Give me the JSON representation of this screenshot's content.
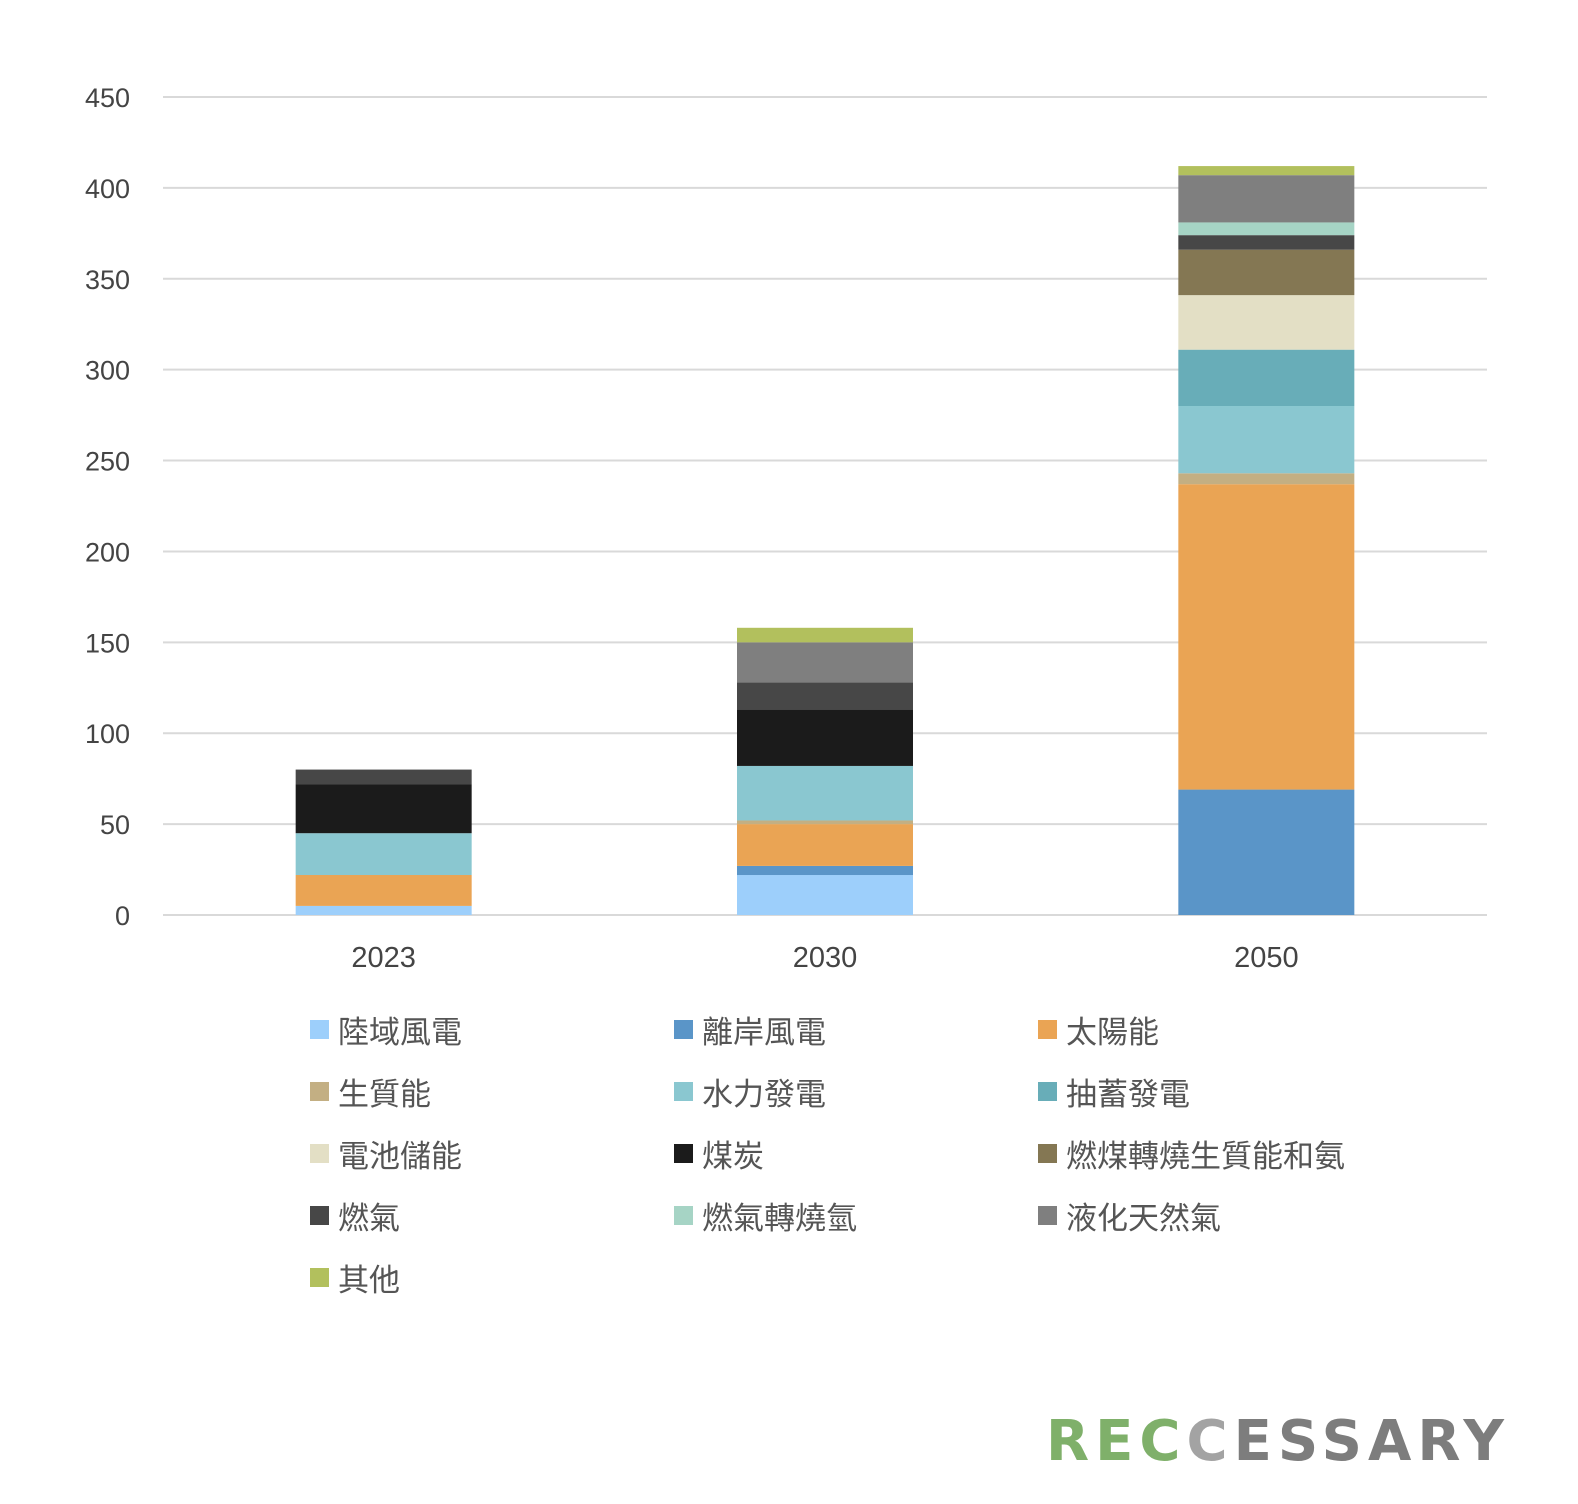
{
  "chart_data": {
    "type": "bar",
    "stacked": true,
    "categories": [
      "2023",
      "2030",
      "2050"
    ],
    "ylim": [
      0,
      450
    ],
    "yticks": [
      0,
      50,
      100,
      150,
      200,
      250,
      300,
      350,
      400,
      450
    ],
    "grid": true,
    "legend_position": "bottom",
    "title": "",
    "xlabel": "",
    "ylabel": "",
    "series": [
      {
        "name": "陸域風電",
        "color": "#9DCFFB",
        "values": [
          5,
          22,
          0
        ]
      },
      {
        "name": "離岸風電",
        "color": "#5A95C8",
        "values": [
          0,
          5,
          69
        ]
      },
      {
        "name": "太陽能",
        "color": "#EAA454",
        "values": [
          17,
          23,
          168
        ]
      },
      {
        "name": "生質能",
        "color": "#C3AF83",
        "values": [
          0,
          2,
          6
        ]
      },
      {
        "name": "水力發電",
        "color": "#8AC7D0",
        "values": [
          23,
          30,
          37
        ]
      },
      {
        "name": "抽蓄發電",
        "color": "#68ADB8",
        "values": [
          0,
          0,
          31
        ]
      },
      {
        "name": "電池儲能",
        "color": "#E3DFC5",
        "values": [
          0,
          0,
          30
        ]
      },
      {
        "name": "煤炭",
        "color": "#1B1B1B",
        "values": [
          27,
          31,
          0
        ]
      },
      {
        "name": "燃煤轉燒生質能和氨",
        "color": "#847753",
        "values": [
          0,
          0,
          25
        ]
      },
      {
        "name": "燃氣",
        "color": "#474747",
        "values": [
          8,
          15,
          8
        ]
      },
      {
        "name": "燃氣轉燒氫",
        "color": "#A6D4C5",
        "values": [
          0,
          0,
          7
        ]
      },
      {
        "name": "液化天然氣",
        "color": "#7F7F7F",
        "values": [
          0,
          22,
          26
        ]
      },
      {
        "name": "其他",
        "color": "#B2C05D",
        "values": [
          0,
          8,
          5
        ]
      }
    ]
  },
  "logo": {
    "parts": [
      {
        "text": "R",
        "color": "#7FB06A"
      },
      {
        "text": "E",
        "color": "#7FB06A"
      },
      {
        "text": "C",
        "color": "#7FB06A"
      },
      {
        "text": "C",
        "color": "#A3A3A3"
      },
      {
        "text": "ESSARY",
        "color": "#7D7D7D"
      }
    ]
  }
}
